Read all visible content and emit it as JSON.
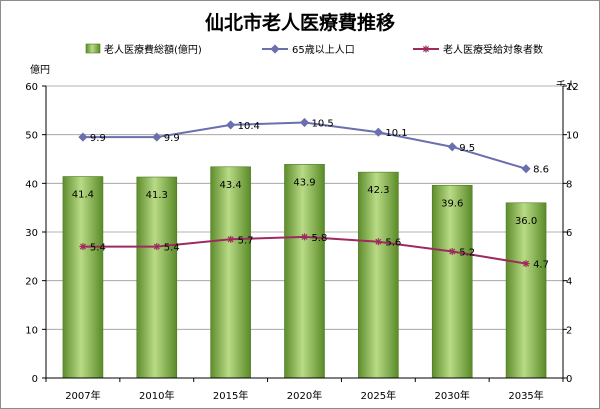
{
  "chart_data": {
    "type": "bar",
    "title": "仙北市老人医療費推移",
    "categories": [
      "2007年",
      "2010年",
      "2015年",
      "2020年",
      "2025年",
      "2030年",
      "2035年"
    ],
    "left_axis": {
      "unit": "億円",
      "ylim": [
        0,
        60
      ],
      "ticks": [
        0,
        10,
        20,
        30,
        40,
        50,
        60
      ]
    },
    "right_axis": {
      "unit": "千人",
      "ylim": [
        0,
        12
      ],
      "ticks": [
        0,
        2,
        4,
        6,
        8,
        10,
        12
      ]
    },
    "grid": true,
    "legend_position": "top",
    "series": [
      {
        "name": "老人医療費総額(億円)",
        "type": "bar",
        "axis": "left",
        "color": "#7fae3f",
        "values": [
          41.4,
          41.3,
          43.4,
          43.9,
          42.3,
          39.6,
          36.0
        ],
        "labels": [
          "41.4",
          "41.3",
          "43.4",
          "43.9",
          "42.3",
          "39.6",
          "36.0"
        ]
      },
      {
        "name": "65歳以上人口",
        "type": "line",
        "axis": "right",
        "color": "#6a6fae",
        "marker": "diamond",
        "values": [
          9.9,
          9.9,
          10.4,
          10.5,
          10.1,
          9.5,
          8.6
        ],
        "labels": [
          "9.9",
          "9.9",
          "10.4",
          "10.5",
          "10.1",
          "9.5",
          "8.6"
        ]
      },
      {
        "name": "老人医療受給対象者数",
        "type": "line",
        "axis": "right",
        "color": "#9e2b5f",
        "marker": "star",
        "values": [
          5.4,
          5.4,
          5.7,
          5.8,
          5.6,
          5.2,
          4.7
        ],
        "labels": [
          "5.4",
          "5.4",
          "5.7",
          "5.8",
          "5.6",
          "5.2",
          "4.7"
        ]
      }
    ]
  }
}
